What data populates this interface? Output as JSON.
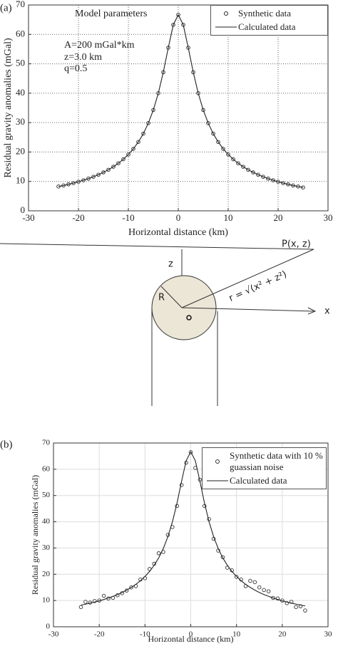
{
  "chart_data": [
    {
      "type": "line",
      "label": "(a)",
      "xlabel": "Horizontal distance (km)",
      "ylabel": "Residual gravity anomalies (mGal)",
      "annotations": [
        "Model parameters",
        "A=200 mGal*km",
        "z=3.0 km",
        "q=0.5"
      ],
      "x": [
        -24,
        -23,
        -22,
        -21,
        -20,
        -19,
        -18,
        -17,
        -16,
        -15,
        -14,
        -13,
        -12,
        -11,
        -10,
        -9,
        -8,
        -7,
        -6,
        -5,
        -4,
        -3,
        -2,
        -1,
        0,
        1,
        2,
        3,
        4,
        5,
        6,
        7,
        8,
        9,
        10,
        11,
        12,
        13,
        14,
        15,
        16,
        17,
        18,
        19,
        20,
        21,
        22,
        23,
        24,
        25
      ],
      "series": [
        {
          "name": "Synthetic data",
          "color": "#222222",
          "mode": "markers",
          "values": [
            8.27,
            8.62,
            9.01,
            9.43,
            9.89,
            10.4,
            10.96,
            11.59,
            12.29,
            13.07,
            13.97,
            14.99,
            16.17,
            17.54,
            19.16,
            21.08,
            23.41,
            26.26,
            29.81,
            34.3,
            40,
            47.14,
            55.47,
            63.25,
            66.67,
            63.25,
            55.47,
            47.14,
            40,
            34.3,
            29.81,
            26.26,
            23.41,
            21.08,
            19.16,
            17.54,
            16.17,
            14.99,
            13.97,
            13.07,
            12.29,
            11.59,
            10.96,
            10.4,
            9.89,
            9.43,
            9.01,
            8.62,
            8.27,
            7.94
          ]
        },
        {
          "name": "Calculated data",
          "color": "#222222",
          "mode": "lines",
          "values": [
            8.27,
            8.62,
            9.01,
            9.43,
            9.89,
            10.4,
            10.96,
            11.59,
            12.29,
            13.07,
            13.97,
            14.99,
            16.17,
            17.54,
            19.16,
            21.08,
            23.41,
            26.26,
            29.81,
            34.3,
            40,
            47.14,
            55.47,
            63.25,
            66.67,
            63.25,
            55.47,
            47.14,
            40,
            34.3,
            29.81,
            26.26,
            23.41,
            21.08,
            19.16,
            17.54,
            16.17,
            14.99,
            13.97,
            13.07,
            12.29,
            11.59,
            10.96,
            10.4,
            9.89,
            9.43,
            9.01,
            8.62,
            8.27,
            7.94
          ]
        }
      ],
      "xlim": [
        -30,
        30
      ],
      "xticks": [
        -30,
        -20,
        -10,
        0,
        10,
        20,
        30
      ],
      "ylim": [
        0,
        70
      ],
      "yticks": [
        0,
        10,
        20,
        30,
        40,
        50,
        60,
        70
      ],
      "grid": true,
      "grid_style": "dotted",
      "legend": "upper right"
    },
    {
      "type": "line",
      "label": "(b)",
      "xlabel": "Horizontal distance (km)",
      "ylabel": "Residual gravity anomalies (mGal)",
      "x": [
        -24,
        -23,
        -22,
        -21,
        -20,
        -19,
        -18,
        -17,
        -16,
        -15,
        -14,
        -13,
        -12,
        -11,
        -10,
        -9,
        -8,
        -7,
        -6,
        -5,
        -4,
        -3,
        -2,
        -1,
        0,
        1,
        2,
        3,
        4,
        5,
        6,
        7,
        8,
        9,
        10,
        11,
        12,
        13,
        14,
        15,
        16,
        17,
        18,
        19,
        20,
        21,
        22,
        23,
        24,
        25
      ],
      "series": [
        {
          "name": "Synthetic data with 10 % guassian noise",
          "color": "#333333",
          "mode": "markers",
          "values": [
            7.5,
            9.5,
            9.2,
            9.8,
            10,
            11.8,
            10.8,
            11,
            12,
            12.8,
            13.8,
            15,
            15.5,
            18,
            18.5,
            22,
            24,
            28,
            28.5,
            35,
            38,
            46,
            54,
            62.5,
            66.5,
            60.5,
            56,
            46,
            41,
            33.5,
            29,
            26.5,
            22.5,
            21.5,
            19,
            18,
            15.5,
            17.5,
            17,
            15,
            14,
            13.5,
            11,
            10.8,
            10,
            9,
            9.5,
            7.5,
            7.8,
            6.2
          ]
        },
        {
          "name": "Calculated data",
          "color": "#222222",
          "mode": "lines",
          "values": [
            8.27,
            8.62,
            9.01,
            9.43,
            9.89,
            10.4,
            10.96,
            11.59,
            12.29,
            13.07,
            13.97,
            14.99,
            16.17,
            17.54,
            19.16,
            21.08,
            23.41,
            26.26,
            29.81,
            34.3,
            40,
            47.14,
            55.47,
            63.25,
            66.67,
            63.25,
            55.47,
            47.14,
            40,
            34.3,
            29.81,
            26.26,
            23.41,
            21.08,
            19.16,
            17.54,
            16.17,
            14.99,
            13.97,
            13.07,
            12.29,
            11.59,
            10.96,
            10.4,
            9.89,
            9.43,
            9.01,
            8.62,
            8.27,
            7.94
          ]
        }
      ],
      "xlim": [
        -30,
        30
      ],
      "xticks": [
        -30,
        -20,
        -10,
        0,
        10,
        20,
        30
      ],
      "ylim": [
        0,
        70
      ],
      "yticks": [
        0,
        10,
        20,
        30,
        40,
        50,
        60,
        70
      ],
      "grid": true,
      "grid_style": "solid",
      "legend": "upper right"
    }
  ],
  "diagram": {
    "point": "P(x, z)",
    "z": "z",
    "R": "R",
    "x": "x",
    "formula": "r = √(x² + z²)"
  }
}
